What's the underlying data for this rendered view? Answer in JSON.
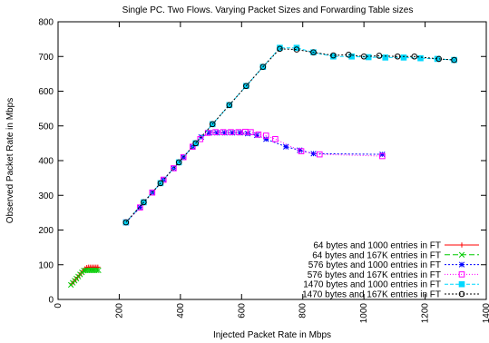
{
  "chart_data": {
    "type": "line",
    "title": "Single PC. Two Flows. Varying Packet Sizes and Forwarding Table sizes",
    "xlabel": "Injected Packet Rate in Mbps",
    "ylabel": "Observed Packet Rate in Mbps",
    "xlim": [
      0,
      1400
    ],
    "ylim": [
      0,
      800
    ],
    "xticks": [
      0,
      200,
      400,
      600,
      800,
      1000,
      1200,
      1400
    ],
    "yticks": [
      0,
      100,
      200,
      300,
      400,
      500,
      600,
      700,
      800
    ],
    "xtick_labels": [
      "0",
      "200",
      "400",
      "600",
      "800",
      "1000",
      "1200",
      "1400"
    ],
    "ytick_labels": [
      "0",
      "100",
      "200",
      "300",
      "400",
      "500",
      "600",
      "700",
      "800"
    ],
    "grid": false,
    "legend_position": "bottom-right",
    "series": [
      {
        "name": "64 bytes and 1000 entries in FT",
        "color": "#ff0000",
        "marker": "plus",
        "dash": "solid",
        "x": [
          45,
          52,
          58,
          64,
          70,
          76,
          82,
          88,
          94,
          100,
          106,
          112,
          118,
          124,
          130
        ],
        "y": [
          45,
          52,
          58,
          64,
          70,
          76,
          82,
          88,
          92,
          93,
          93,
          93,
          93,
          93,
          93
        ]
      },
      {
        "name": "64 bytes and 167K entries in FT",
        "color": "#00cc00",
        "marker": "x",
        "dash": "6,3",
        "x": [
          42,
          48,
          54,
          60,
          66,
          72,
          78,
          84,
          90,
          96,
          102,
          108,
          114,
          120,
          126,
          132
        ],
        "y": [
          42,
          48,
          54,
          60,
          66,
          72,
          78,
          83,
          84,
          84,
          84,
          84,
          84,
          84,
          84,
          84
        ]
      },
      {
        "name": "576 bytes and 1000 entries in FT",
        "color": "#0000ff",
        "marker": "star",
        "dash": "2,2",
        "x": [
          222,
          268,
          308,
          345,
          378,
          410,
          440,
          468,
          495,
          520,
          545,
          570,
          595,
          620,
          650,
          680,
          745,
          790,
          835,
          1060
        ],
        "y": [
          222,
          265,
          308,
          345,
          378,
          410,
          440,
          468,
          480,
          480,
          480,
          480,
          480,
          478,
          473,
          462,
          440,
          430,
          420,
          418
        ]
      },
      {
        "name": "576 bytes and 167K entries in FT",
        "color": "#ff00ff",
        "marker": "square",
        "dash": "1,2",
        "x": [
          222,
          268,
          308,
          345,
          378,
          410,
          440,
          465,
          490,
          515,
          540,
          565,
          590,
          612,
          630,
          655,
          680,
          710,
          795,
          855,
          1060
        ],
        "y": [
          222,
          265,
          308,
          345,
          378,
          410,
          440,
          462,
          480,
          482,
          482,
          482,
          482,
          483,
          482,
          475,
          472,
          462,
          427,
          418,
          413
        ]
      },
      {
        "name": "1470 bytes and 1000 entries in FT",
        "color": "#00d8ff",
        "marker": "filled-square",
        "dash": "4,2",
        "x": [
          222,
          280,
          335,
          395,
          450,
          505,
          560,
          615,
          670,
          725,
          780,
          835,
          900,
          960,
          1015,
          1070,
          1130,
          1185,
          1240,
          1295
        ],
        "y": [
          222,
          280,
          335,
          395,
          450,
          505,
          560,
          615,
          670,
          725,
          725,
          712,
          700,
          700,
          698,
          697,
          697,
          695,
          693,
          690
        ]
      },
      {
        "name": "1470 bytes and 167K entries in FT",
        "color": "#000000",
        "marker": "circle",
        "dash": "2,2",
        "x": [
          222,
          280,
          335,
          395,
          450,
          505,
          560,
          615,
          670,
          725,
          780,
          835,
          900,
          950,
          1000,
          1050,
          1110,
          1165,
          1245,
          1295
        ],
        "y": [
          222,
          280,
          335,
          395,
          450,
          505,
          560,
          615,
          670,
          722,
          720,
          712,
          703,
          705,
          700,
          702,
          700,
          700,
          693,
          690
        ]
      }
    ]
  }
}
